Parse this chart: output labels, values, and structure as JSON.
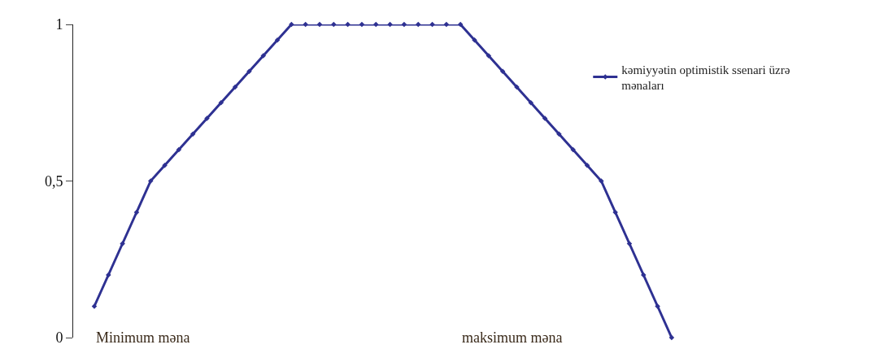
{
  "chart_data": {
    "type": "line",
    "categories": [
      null,
      null,
      null,
      null,
      null,
      null,
      null,
      null,
      null,
      null,
      null,
      null,
      null,
      null,
      null,
      null,
      null,
      null,
      null,
      null,
      null,
      null,
      null,
      null,
      null,
      null,
      null,
      null,
      null,
      null,
      null,
      null,
      null,
      null,
      null,
      null,
      null,
      null,
      null,
      null,
      null,
      null
    ],
    "series": [
      {
        "name": "kəmiyyətin optimistik ssenari üzrə mənaları",
        "color": "#2e3192",
        "values": [
          0.1,
          0.2,
          0.3,
          0.4,
          0.5,
          0.55,
          0.6,
          0.65,
          0.7,
          0.75,
          0.8,
          0.85,
          0.9,
          0.95,
          1,
          1,
          1,
          1,
          1,
          1,
          1,
          1,
          1,
          1,
          1,
          1,
          1,
          0.95,
          0.9,
          0.85,
          0.8,
          0.75,
          0.7,
          0.65,
          0.6,
          0.55,
          0.5,
          0.4,
          0.3,
          0.2,
          0.1,
          0
        ]
      }
    ],
    "ylim": [
      0,
      1
    ],
    "yticks": [
      0,
      {
        "value": 0.5,
        "label": "0,5"
      },
      1
    ],
    "annotations": [
      "Minimum məna",
      "maksimum məna"
    ],
    "legend": "top right",
    "marker": "diamond",
    "line_style": "solid"
  }
}
